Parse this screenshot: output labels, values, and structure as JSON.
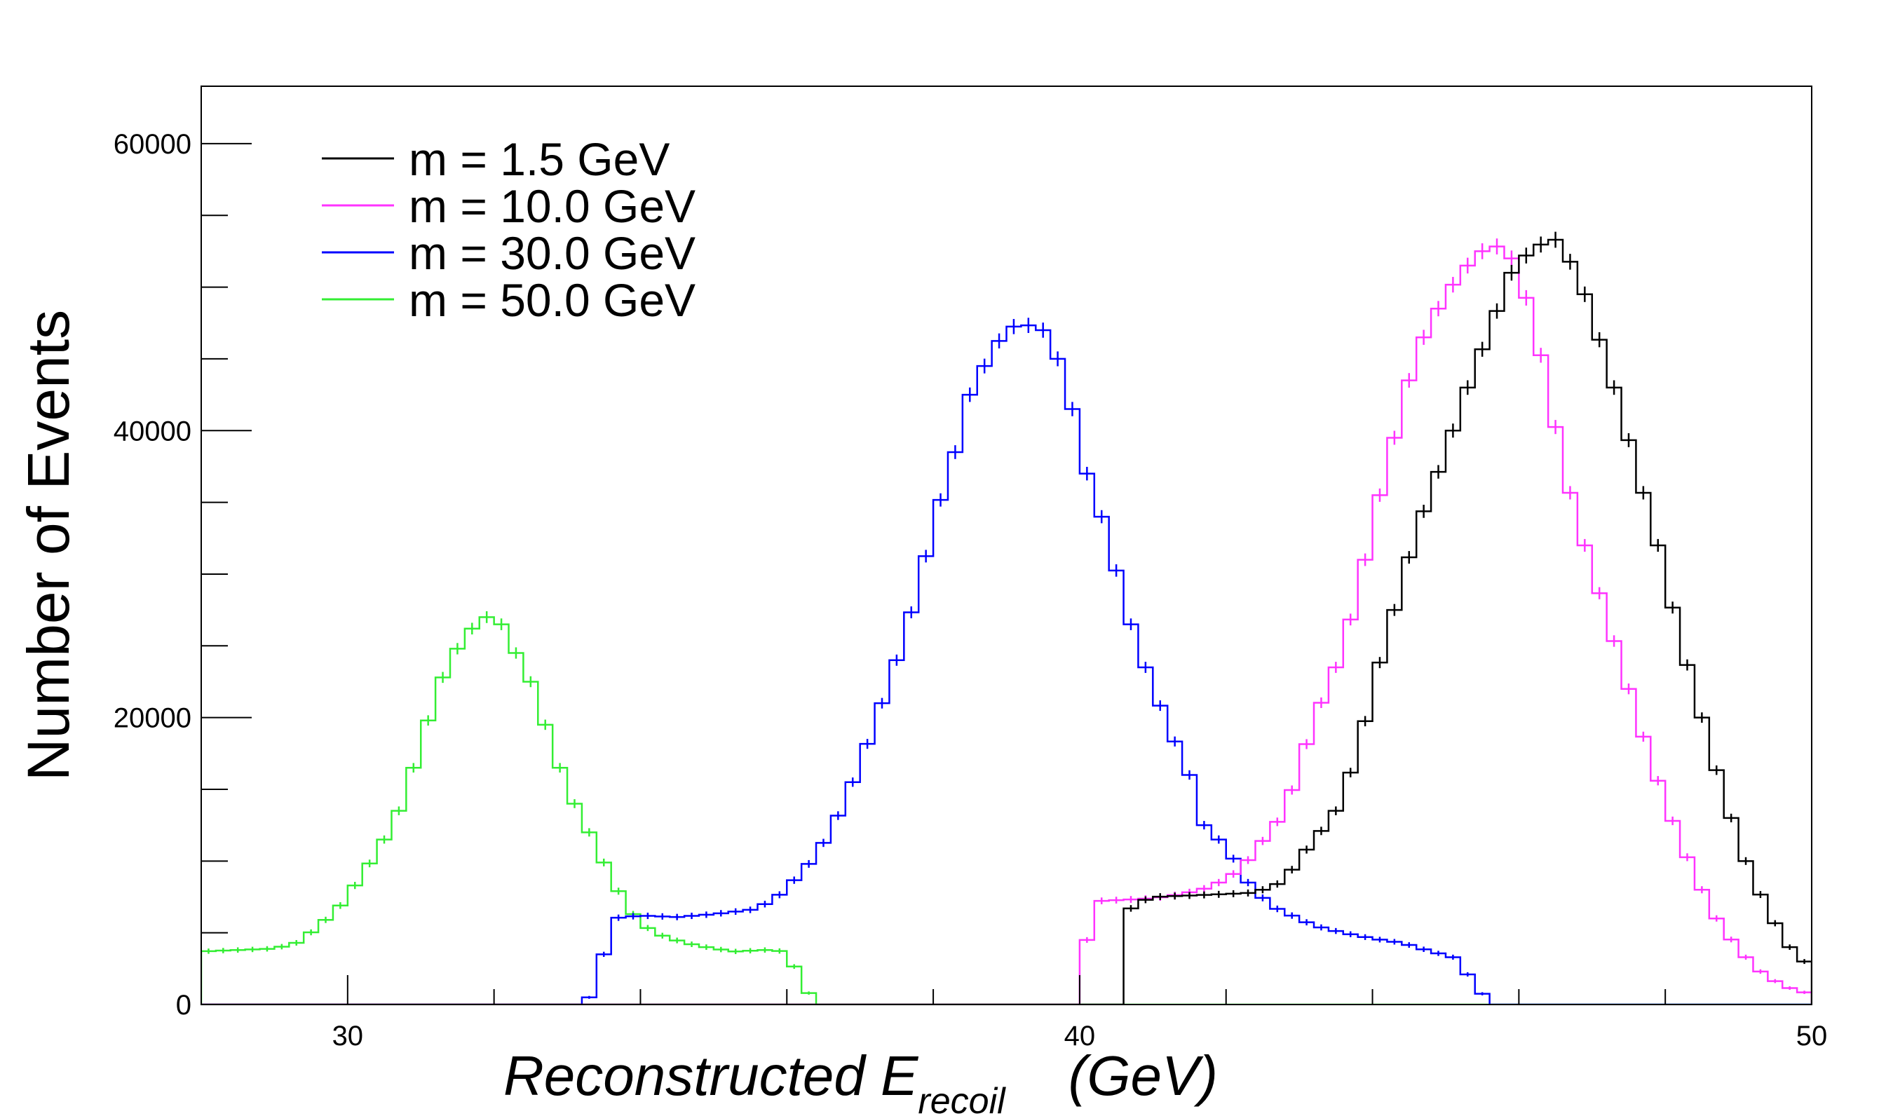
{
  "chart_data": {
    "type": "line",
    "subtype": "histogram",
    "title": "",
    "xlabel": "Reconstructed E",
    "xlabel_subscript": "recoil",
    "xlabel_unit": "(GeV)",
    "ylabel": "Number of Events",
    "xlim": [
      28,
      50
    ],
    "ylim": [
      0,
      64000
    ],
    "x_ticks": [
      30,
      40,
      50
    ],
    "y_ticks": [
      0,
      20000,
      40000,
      60000
    ],
    "legend_position": "top-left",
    "grid": false,
    "bin_width": 0.2,
    "series": [
      {
        "name": "m = 1.5 GeV",
        "color": "#000000",
        "points": [
          [
            40,
            0
          ],
          [
            40.5,
            0
          ],
          [
            40.6,
            6300
          ],
          [
            40.8,
            7100
          ],
          [
            41,
            7500
          ],
          [
            41.5,
            7600
          ],
          [
            42,
            7700
          ],
          [
            42.4,
            7800
          ],
          [
            42.8,
            8600
          ],
          [
            43,
            10200
          ],
          [
            43.2,
            11400
          ],
          [
            43.5,
            13500
          ],
          [
            43.8,
            17500
          ],
          [
            44,
            22000
          ],
          [
            44.3,
            27500
          ],
          [
            44.6,
            33000
          ],
          [
            45,
            38500
          ],
          [
            45.3,
            43000
          ],
          [
            45.6,
            47000
          ],
          [
            45.9,
            51000
          ],
          [
            46.2,
            52800
          ],
          [
            46.5,
            53300
          ],
          [
            46.8,
            51000
          ],
          [
            47,
            48000
          ],
          [
            47.3,
            43000
          ],
          [
            47.6,
            37500
          ],
          [
            47.9,
            32000
          ],
          [
            48.2,
            25500
          ],
          [
            48.5,
            20000
          ],
          [
            48.8,
            14500
          ],
          [
            49.1,
            10000
          ],
          [
            49.4,
            6500
          ],
          [
            49.7,
            4000
          ],
          [
            50,
            2500
          ],
          [
            50.4,
            1300
          ],
          [
            50.8,
            600
          ],
          [
            51.2,
            250
          ],
          [
            52,
            0
          ]
        ]
      },
      {
        "name": "m = 10.0 GeV",
        "color": "#ff33ff",
        "points": [
          [
            39.9,
            0
          ],
          [
            40,
            1800
          ],
          [
            40.2,
            7200
          ],
          [
            40.6,
            7300
          ],
          [
            41,
            7400
          ],
          [
            41.4,
            7700
          ],
          [
            41.8,
            8200
          ],
          [
            42.2,
            9400
          ],
          [
            42.5,
            11400
          ],
          [
            42.8,
            13400
          ],
          [
            43,
            16500
          ],
          [
            43.2,
            19800
          ],
          [
            43.5,
            23500
          ],
          [
            43.8,
            28500
          ],
          [
            44,
            33500
          ],
          [
            44.3,
            39500
          ],
          [
            44.6,
            45500
          ],
          [
            44.9,
            48500
          ],
          [
            45.2,
            51000
          ],
          [
            45.5,
            52500
          ],
          [
            45.8,
            53000
          ],
          [
            46,
            51000
          ],
          [
            46.2,
            47500
          ],
          [
            46.4,
            43000
          ],
          [
            46.6,
            37500
          ],
          [
            46.9,
            32000
          ],
          [
            47.2,
            27000
          ],
          [
            47.5,
            22000
          ],
          [
            47.8,
            17000
          ],
          [
            48.1,
            12800
          ],
          [
            48.4,
            9000
          ],
          [
            48.7,
            6000
          ],
          [
            49,
            3800
          ],
          [
            49.3,
            2300
          ],
          [
            49.6,
            1300
          ],
          [
            50,
            700
          ],
          [
            50.4,
            300
          ],
          [
            50.8,
            100
          ],
          [
            51.2,
            0
          ]
        ]
      },
      {
        "name": "m = 30.0 GeV",
        "color": "#0000ff",
        "points": [
          [
            28,
            0
          ],
          [
            33.2,
            0
          ],
          [
            33.4,
            1000
          ],
          [
            33.6,
            6000
          ],
          [
            34,
            6200
          ],
          [
            34.5,
            6100
          ],
          [
            35,
            6300
          ],
          [
            35.5,
            6600
          ],
          [
            35.8,
            7200
          ],
          [
            36,
            8100
          ],
          [
            36.3,
            9800
          ],
          [
            36.6,
            12000
          ],
          [
            36.9,
            15500
          ],
          [
            37.2,
            19500
          ],
          [
            37.5,
            24000
          ],
          [
            37.8,
            29000
          ],
          [
            38,
            33500
          ],
          [
            38.3,
            38500
          ],
          [
            38.5,
            42500
          ],
          [
            38.8,
            45500
          ],
          [
            39,
            47000
          ],
          [
            39.2,
            47500
          ],
          [
            39.5,
            47000
          ],
          [
            39.7,
            45000
          ],
          [
            39.9,
            41500
          ],
          [
            40.1,
            37000
          ],
          [
            40.4,
            32500
          ],
          [
            40.6,
            28000
          ],
          [
            40.9,
            23500
          ],
          [
            41.2,
            19500
          ],
          [
            41.5,
            16000
          ],
          [
            41.7,
            12500
          ],
          [
            42,
            11000
          ],
          [
            42.3,
            8500
          ],
          [
            42.6,
            6900
          ],
          [
            42.9,
            6200
          ],
          [
            43.2,
            5500
          ],
          [
            43.6,
            5000
          ],
          [
            44,
            4600
          ],
          [
            44.4,
            4300
          ],
          [
            44.8,
            3700
          ],
          [
            45.1,
            3300
          ],
          [
            45.4,
            1500
          ],
          [
            45.6,
            0
          ],
          [
            50,
            0
          ]
        ]
      },
      {
        "name": "m = 50.0 GeV",
        "color": "#33ee33",
        "points": [
          [
            28,
            3700
          ],
          [
            28.5,
            3800
          ],
          [
            29,
            3900
          ],
          [
            29.3,
            4300
          ],
          [
            29.6,
            5400
          ],
          [
            29.9,
            6900
          ],
          [
            30.2,
            9000
          ],
          [
            30.5,
            11500
          ],
          [
            30.7,
            13500
          ],
          [
            30.9,
            16500
          ],
          [
            31.1,
            19800
          ],
          [
            31.3,
            22800
          ],
          [
            31.5,
            24800
          ],
          [
            31.7,
            26200
          ],
          [
            31.9,
            27000
          ],
          [
            32.1,
            26500
          ],
          [
            32.3,
            24500
          ],
          [
            32.5,
            22500
          ],
          [
            32.7,
            19500
          ],
          [
            32.9,
            16500
          ],
          [
            33.1,
            14000
          ],
          [
            33.4,
            11000
          ],
          [
            33.6,
            8800
          ],
          [
            33.8,
            7000
          ],
          [
            34,
            5600
          ],
          [
            34.3,
            4800
          ],
          [
            34.6,
            4300
          ],
          [
            35,
            3900
          ],
          [
            35.3,
            3700
          ],
          [
            35.7,
            3800
          ],
          [
            36,
            3700
          ],
          [
            36.2,
            1600
          ],
          [
            36.4,
            0
          ],
          [
            50,
            0
          ]
        ]
      }
    ]
  }
}
